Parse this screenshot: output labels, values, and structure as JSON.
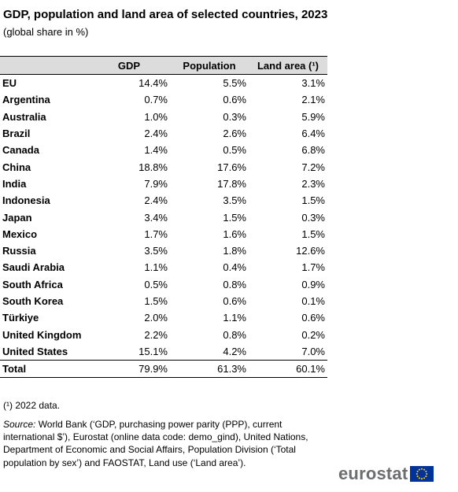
{
  "title": "GDP, population and land area of selected countries, 2023",
  "subtitle": "(global share in %)",
  "table": {
    "headers": [
      "",
      "GDP",
      "Population",
      "Land area (¹)"
    ],
    "rows": [
      [
        "EU",
        "14.4%",
        "5.5%",
        "3.1%"
      ],
      [
        "Argentina",
        "0.7%",
        "0.6%",
        "2.1%"
      ],
      [
        "Australia",
        "1.0%",
        "0.3%",
        "5.9%"
      ],
      [
        "Brazil",
        "2.4%",
        "2.6%",
        "6.4%"
      ],
      [
        "Canada",
        "1.4%",
        "0.5%",
        "6.8%"
      ],
      [
        "China",
        "18.8%",
        "17.6%",
        "7.2%"
      ],
      [
        "India",
        "7.9%",
        "17.8%",
        "2.3%"
      ],
      [
        "Indonesia",
        "2.4%",
        "3.5%",
        "1.5%"
      ],
      [
        "Japan",
        "3.4%",
        "1.5%",
        "0.3%"
      ],
      [
        "Mexico",
        "1.7%",
        "1.6%",
        "1.5%"
      ],
      [
        "Russia",
        "3.5%",
        "1.8%",
        "12.6%"
      ],
      [
        "Saudi Arabia",
        "1.1%",
        "0.4%",
        "1.7%"
      ],
      [
        "South Africa",
        "0.5%",
        "0.8%",
        "0.9%"
      ],
      [
        "South Korea",
        "1.5%",
        "0.6%",
        "0.1%"
      ],
      [
        "Türkiye",
        "2.0%",
        "1.1%",
        "0.6%"
      ],
      [
        "United Kingdom",
        "2.2%",
        "0.8%",
        "0.2%"
      ],
      [
        "United States",
        "15.1%",
        "4.2%",
        "7.0%"
      ],
      [
        "Total",
        "79.9%",
        "61.3%",
        "60.1%"
      ]
    ]
  },
  "footnote": "(¹) 2022 data.",
  "source": {
    "label": "Source:",
    "text": " World Bank (‘GDP, purchasing power parity (PPP), current international $’), Eurostat (online data code: demo_gind), United Nations, Department of Economic and Social Affairs, Population Division (‘Total population by sex’) and FAOSTAT, Land use (‘Land area’)."
  },
  "logo": {
    "text": "eurostat",
    "flag_color": "#003399",
    "star_color": "#ffcc00",
    "text_color": "#6d6e70"
  }
}
